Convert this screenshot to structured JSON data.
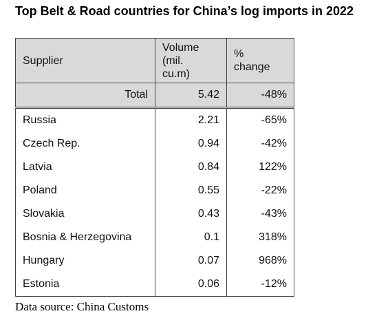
{
  "title": "Top Belt & Road countries for China’s log imports in 2022",
  "table": {
    "header": [
      "Supplier",
      "Volume\n(mil.\ncu.m)",
      "%\nchange"
    ],
    "total": [
      "Total",
      "5.42",
      "-48%"
    ],
    "rows": [
      [
        "Russia",
        "2.21",
        "-65%"
      ],
      [
        "Czech Rep.",
        "0.94",
        "-42%"
      ],
      [
        "Latvia",
        "0.84",
        "122%"
      ],
      [
        "Poland",
        "0.55",
        "-22%"
      ],
      [
        "Slovakia",
        "0.43",
        "-43%"
      ],
      [
        "Bosnia & Herzegovina",
        "0.1",
        "318%"
      ],
      [
        "Hungary",
        "0.07",
        "968%"
      ],
      [
        "Estonia",
        "0.06",
        "-12%"
      ]
    ]
  },
  "source": "Data source: China Customs"
}
